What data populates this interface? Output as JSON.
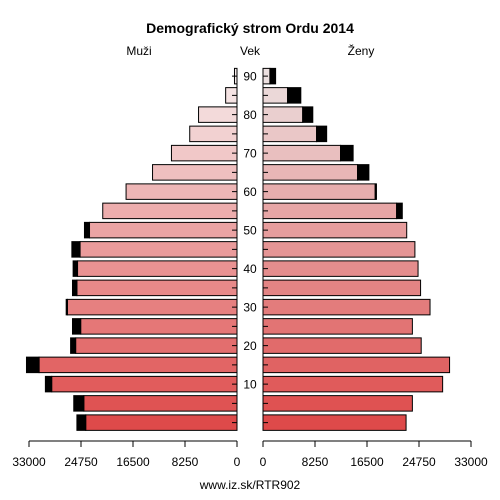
{
  "chart_data": {
    "type": "bar",
    "title": "Demografický strom Ordu 2014",
    "left_label": "Muži",
    "center_label": "Vek",
    "right_label": "Ženy",
    "footer": "www.iz.sk/RTR902",
    "age_ticks": [
      "10",
      "20",
      "30",
      "40",
      "50",
      "60",
      "70",
      "80",
      "90"
    ],
    "x_ticks_left": [
      "33000",
      "24750",
      "16500",
      "8250",
      "0"
    ],
    "x_ticks_right": [
      "0",
      "8250",
      "16500",
      "24750",
      "33000"
    ],
    "xlim": [
      0,
      33000
    ],
    "age_groups": [
      "0-4",
      "5-9",
      "10-14",
      "15-19",
      "20-24",
      "25-29",
      "30-34",
      "35-39",
      "40-44",
      "45-49",
      "50-54",
      "55-59",
      "60-64",
      "65-69",
      "70-74",
      "75-79",
      "80-84",
      "85-89",
      "90+"
    ],
    "series": [
      {
        "name": "Muži",
        "values": [
          24000,
          24300,
          29400,
          31400,
          25600,
          24800,
          26900,
          25400,
          25300,
          24900,
          23400,
          21300,
          17600,
          13400,
          10400,
          7500,
          6100,
          1800,
          400
        ],
        "excess": [
          1400,
          1600,
          1000,
          2000,
          800,
          1300,
          200,
          700,
          700,
          1300,
          800,
          0,
          0,
          0,
          0,
          0,
          0,
          0,
          0
        ]
      },
      {
        "name": "Ženy",
        "values": [
          22700,
          23700,
          28500,
          29600,
          25100,
          23700,
          26500,
          25000,
          24600,
          24100,
          22800,
          21200,
          17800,
          15000,
          12300,
          8500,
          6300,
          3900,
          1100
        ],
        "excess": [
          0,
          0,
          0,
          0,
          0,
          0,
          0,
          0,
          0,
          0,
          0,
          900,
          200,
          1800,
          2000,
          1600,
          1600,
          2100,
          900
        ]
      }
    ]
  }
}
